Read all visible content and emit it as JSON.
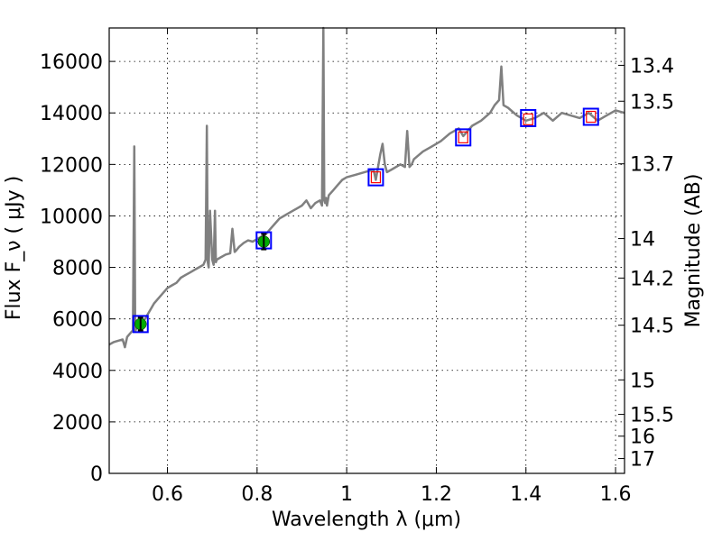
{
  "chart_data": {
    "type": "line",
    "title": "",
    "xlabel": "Wavelength  λ (μm)",
    "ylabel": "Flux  F_ν  ( μJy )",
    "ylabel_right": "Magnitude (AB)",
    "xlim": [
      0.47,
      1.62
    ],
    "ylim": [
      0,
      17300
    ],
    "grid": true,
    "x_ticks": [
      0.6,
      0.8,
      1.0,
      1.2,
      1.4,
      1.6
    ],
    "x_tick_labels": [
      "0.6",
      "0.8",
      "1",
      "1.2",
      "1.4",
      "1.6"
    ],
    "y_ticks": [
      0,
      2000,
      4000,
      6000,
      8000,
      10000,
      12000,
      14000,
      16000
    ],
    "y_tick_labels": [
      "0",
      "2000",
      "4000",
      "6000",
      "8000",
      "10000",
      "12000",
      "14000",
      "16000"
    ],
    "right_tick_values": [
      13.4,
      13.5,
      13.7,
      14,
      14.2,
      14.5,
      15,
      15.5,
      16,
      17
    ],
    "right_tick_labels": [
      "13.4",
      "13.5",
      "13.7",
      "14",
      "14.2",
      "14.5",
      "15",
      "15.5",
      "16",
      "17"
    ],
    "series": [
      {
        "name": "spectrum",
        "color": "#808080",
        "x": [
          0.47,
          0.48,
          0.49,
          0.5,
          0.505,
          0.51,
          0.515,
          0.52,
          0.523,
          0.526,
          0.528,
          0.53,
          0.532,
          0.535,
          0.54,
          0.55,
          0.56,
          0.57,
          0.58,
          0.59,
          0.6,
          0.61,
          0.62,
          0.63,
          0.64,
          0.65,
          0.66,
          0.67,
          0.68,
          0.685,
          0.688,
          0.69,
          0.692,
          0.695,
          0.7,
          0.703,
          0.706,
          0.708,
          0.71,
          0.72,
          0.73,
          0.74,
          0.745,
          0.75,
          0.753,
          0.76,
          0.77,
          0.78,
          0.79,
          0.8,
          0.81,
          0.82,
          0.83,
          0.84,
          0.85,
          0.86,
          0.87,
          0.88,
          0.89,
          0.9,
          0.91,
          0.92,
          0.93,
          0.94,
          0.945,
          0.948,
          0.95,
          0.952,
          0.954,
          0.956,
          0.96,
          0.97,
          0.98,
          0.99,
          1.0,
          1.02,
          1.04,
          1.06,
          1.065,
          1.07,
          1.075,
          1.08,
          1.085,
          1.09,
          1.1,
          1.12,
          1.13,
          1.135,
          1.14,
          1.145,
          1.15,
          1.17,
          1.19,
          1.21,
          1.23,
          1.25,
          1.26,
          1.27,
          1.28,
          1.3,
          1.32,
          1.33,
          1.34,
          1.345,
          1.35,
          1.36,
          1.38,
          1.4,
          1.42,
          1.44,
          1.46,
          1.48,
          1.5,
          1.52,
          1.54,
          1.56,
          1.58,
          1.6,
          1.62
        ],
        "y": [
          5000,
          5100,
          5150,
          5200,
          4900,
          5300,
          5400,
          5500,
          5550,
          12700,
          5500,
          5600,
          5650,
          5700,
          5750,
          6000,
          6300,
          6600,
          6800,
          7000,
          7200,
          7300,
          7400,
          7600,
          7700,
          7800,
          7900,
          8000,
          8100,
          8300,
          13500,
          8200,
          8000,
          10200,
          8300,
          8100,
          10200,
          8200,
          8300,
          8400,
          8500,
          8550,
          9500,
          8600,
          8650,
          8800,
          8950,
          9050,
          9000,
          9100,
          9200,
          9300,
          9500,
          9700,
          9900,
          10000,
          10100,
          10200,
          10300,
          10400,
          10600,
          10300,
          10500,
          10600,
          10400,
          17300,
          10600,
          10500,
          10700,
          10400,
          10800,
          11000,
          11200,
          11400,
          11500,
          11600,
          11700,
          11800,
          11400,
          11900,
          12400,
          12800,
          12000,
          11700,
          11800,
          12000,
          11900,
          13300,
          11900,
          12000,
          12200,
          12500,
          12700,
          12900,
          13200,
          13400,
          13100,
          13300,
          13500,
          13700,
          14000,
          14300,
          14500,
          15800,
          14300,
          14200,
          13900,
          13700,
          13800,
          14000,
          13700,
          14000,
          13900,
          13800,
          14000,
          13700,
          13900,
          14100,
          14000
        ]
      }
    ],
    "photometry": [
      {
        "x": 0.54,
        "y": 5800,
        "err": 250,
        "box_y": 5800,
        "filled": true,
        "color": "#00aa00"
      },
      {
        "x": 0.815,
        "y": 9000,
        "err": 300,
        "box_y": 9050,
        "filled": true,
        "color": "#00aa00"
      },
      {
        "x": 1.065,
        "y": 11500,
        "err": 250,
        "box_y": 11500,
        "filled": false,
        "color": "#ff0000"
      },
      {
        "x": 1.26,
        "y": 13050,
        "err": 250,
        "box_y": 13050,
        "filled": false,
        "color": "#ff0000"
      },
      {
        "x": 1.405,
        "y": 13750,
        "err": 250,
        "box_y": 13800,
        "filled": false,
        "color": "#ff0000"
      },
      {
        "x": 1.545,
        "y": 13850,
        "err": 250,
        "box_y": 13850,
        "filled": false,
        "color": "#ff0000"
      }
    ],
    "colors": {
      "spectrum": "#808080",
      "box": "#0000ff",
      "detected": "#00aa00",
      "synthetic": "#ff0000"
    }
  }
}
